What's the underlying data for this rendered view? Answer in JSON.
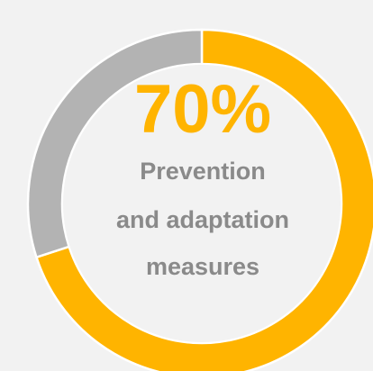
{
  "chart_data": {
    "type": "pie",
    "style": "donut",
    "values": [
      70,
      30
    ],
    "colors": [
      "#ffb400",
      "#b3b3b3"
    ],
    "center_value": "70%",
    "center_label_lines": [
      "Prevention",
      "and adaptation",
      "measures"
    ],
    "center_value_color": "#ffb400",
    "center_label_color": "#8a8a8a",
    "inner_fill": "#f2f2f2",
    "separator_color": "#ffffff"
  }
}
